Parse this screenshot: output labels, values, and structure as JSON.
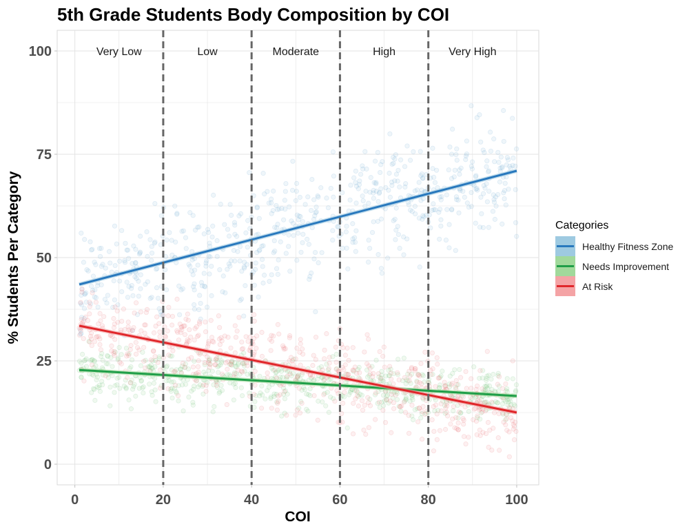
{
  "chart_data": {
    "type": "scatter",
    "title": "5th Grade Students Body Composition by COI",
    "xlabel": "COI",
    "ylabel": "% Students Per Category",
    "xlim": [
      -4,
      105
    ],
    "ylim": [
      -5,
      105
    ],
    "x_ticks": [
      0,
      20,
      40,
      60,
      80,
      100
    ],
    "y_ticks": [
      0,
      25,
      50,
      75,
      100
    ],
    "grid": true,
    "legend_position": "right",
    "legend_title": "Categories",
    "bands": {
      "dividers": [
        20,
        40,
        60,
        80
      ],
      "labels": [
        {
          "text": "Very Low",
          "x": 10
        },
        {
          "text": "Low",
          "x": 30
        },
        {
          "text": "Moderate",
          "x": 50
        },
        {
          "text": "High",
          "x": 70
        },
        {
          "text": "Very High",
          "x": 90
        }
      ],
      "label_y": 100
    },
    "series": [
      {
        "name": "Healthy Fitness Zone",
        "color": "#2878bd",
        "fill": "#9ecae1",
        "trend": {
          "x": [
            1,
            100
          ],
          "y": [
            43.5,
            71.0
          ]
        },
        "spread": 11
      },
      {
        "name": "Needs Improvement",
        "color": "#1f9e48",
        "fill": "#a1d99b",
        "trend": {
          "x": [
            1,
            100
          ],
          "y": [
            22.8,
            16.5
          ]
        },
        "spread": 5
      },
      {
        "name": "At Risk",
        "color": "#e0262a",
        "fill": "#f4a3a5",
        "trend": {
          "x": [
            1,
            100
          ],
          "y": [
            33.5,
            12.5
          ]
        },
        "spread": 8
      }
    ]
  }
}
